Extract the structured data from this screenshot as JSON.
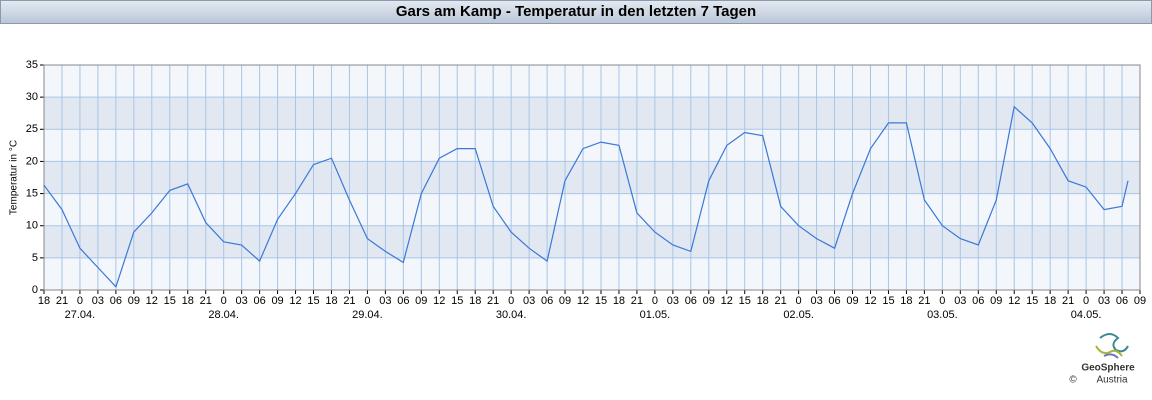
{
  "chart_data": {
    "type": "line",
    "title": "Gars am Kamp - Temperatur in den letzten 7 Tagen",
    "y_label": "Temperatur in °C",
    "x": [
      "26.04. 18:00",
      "26.04. 21:00",
      "27.04. 00:00",
      "27.04. 03:00",
      "27.04. 06:00",
      "27.04. 09:00",
      "27.04. 12:00",
      "27.04. 15:00",
      "27.04. 18:00",
      "27.04. 21:00",
      "28.04. 00:00",
      "28.04. 03:00",
      "28.04. 06:00",
      "28.04. 09:00",
      "28.04. 12:00",
      "28.04. 15:00",
      "28.04. 18:00",
      "28.04. 21:00",
      "29.04. 00:00",
      "29.04. 03:00",
      "29.04. 06:00",
      "29.04. 09:00",
      "29.04. 12:00",
      "29.04. 15:00",
      "29.04. 18:00",
      "29.04. 21:00",
      "30.04. 00:00",
      "30.04. 03:00",
      "30.04. 06:00",
      "30.04. 09:00",
      "30.04. 12:00",
      "30.04. 15:00",
      "30.04. 18:00",
      "30.04. 21:00",
      "01.05. 00:00",
      "01.05. 03:00",
      "01.05. 06:00",
      "01.05. 09:00",
      "01.05. 12:00",
      "01.05. 15:00",
      "01.05. 18:00",
      "01.05. 21:00",
      "02.05. 00:00",
      "02.05. 03:00",
      "02.05. 06:00",
      "02.05. 09:00",
      "02.05. 12:00",
      "02.05. 15:00",
      "02.05. 18:00",
      "02.05. 21:00",
      "03.05. 00:00",
      "03.05. 03:00",
      "03.05. 06:00",
      "03.05. 09:00",
      "03.05. 12:00",
      "03.05. 15:00",
      "03.05. 18:00",
      "03.05. 21:00",
      "04.05. 00:00",
      "04.05. 03:00",
      "04.05. 06:00",
      "04.05. 07:00"
    ],
    "series": [
      {
        "name": "Temperatur",
        "color": "#3a78d8",
        "values": [
          16.3,
          12.5,
          6.5,
          3.5,
          0.5,
          9,
          12,
          15.5,
          16.5,
          10.5,
          7.5,
          7,
          4.5,
          11,
          15,
          19.5,
          20.5,
          14,
          8,
          6,
          4.3,
          15,
          20.5,
          22,
          22,
          13,
          9,
          6.5,
          4.5,
          17,
          22,
          23,
          22.5,
          12,
          9,
          7,
          6,
          17,
          22.5,
          24.5,
          24,
          13,
          10,
          8,
          6.5,
          15,
          22,
          26,
          26,
          14,
          10,
          8,
          7,
          14,
          28.5,
          26,
          22,
          17,
          16,
          12.5,
          13,
          17
        ]
      }
    ],
    "xlim": [
      "26.04. 18:00",
      "04.05. 09:00"
    ],
    "xticks": [
      {
        "value": "26.04. 18:00",
        "label": "18"
      },
      {
        "value": "26.04. 21:00",
        "label": "21"
      },
      {
        "value": "27.04. 00:00",
        "label": "0"
      },
      {
        "value": "27.04. 03:00",
        "label": "03"
      },
      {
        "value": "27.04. 06:00",
        "label": "06"
      },
      {
        "value": "27.04. 09:00",
        "label": "09"
      },
      {
        "value": "27.04. 12:00",
        "label": "12"
      },
      {
        "value": "27.04. 15:00",
        "label": "15"
      },
      {
        "value": "27.04. 18:00",
        "label": "18"
      },
      {
        "value": "27.04. 21:00",
        "label": "21"
      },
      {
        "value": "28.04. 00:00",
        "label": "0"
      },
      {
        "value": "28.04. 03:00",
        "label": "03"
      },
      {
        "value": "28.04. 06:00",
        "label": "06"
      },
      {
        "value": "28.04. 09:00",
        "label": "09"
      },
      {
        "value": "28.04. 12:00",
        "label": "12"
      },
      {
        "value": "28.04. 15:00",
        "label": "15"
      },
      {
        "value": "28.04. 18:00",
        "label": "18"
      },
      {
        "value": "28.04. 21:00",
        "label": "21"
      },
      {
        "value": "29.04. 00:00",
        "label": "0"
      },
      {
        "value": "29.04. 03:00",
        "label": "03"
      },
      {
        "value": "29.04. 06:00",
        "label": "06"
      },
      {
        "value": "29.04. 09:00",
        "label": "09"
      },
      {
        "value": "29.04. 12:00",
        "label": "12"
      },
      {
        "value": "29.04. 15:00",
        "label": "15"
      },
      {
        "value": "29.04. 18:00",
        "label": "18"
      },
      {
        "value": "29.04. 21:00",
        "label": "21"
      },
      {
        "value": "30.04. 00:00",
        "label": "0"
      },
      {
        "value": "30.04. 03:00",
        "label": "03"
      },
      {
        "value": "30.04. 06:00",
        "label": "06"
      },
      {
        "value": "30.04. 09:00",
        "label": "09"
      },
      {
        "value": "30.04. 12:00",
        "label": "12"
      },
      {
        "value": "30.04. 15:00",
        "label": "15"
      },
      {
        "value": "30.04. 18:00",
        "label": "18"
      },
      {
        "value": "30.04. 21:00",
        "label": "21"
      },
      {
        "value": "01.05. 00:00",
        "label": "0"
      },
      {
        "value": "01.05. 03:00",
        "label": "03"
      },
      {
        "value": "01.05. 06:00",
        "label": "06"
      },
      {
        "value": "01.05. 09:00",
        "label": "09"
      },
      {
        "value": "01.05. 12:00",
        "label": "12"
      },
      {
        "value": "01.05. 15:00",
        "label": "15"
      },
      {
        "value": "01.05. 18:00",
        "label": "18"
      },
      {
        "value": "01.05. 21:00",
        "label": "21"
      },
      {
        "value": "02.05. 00:00",
        "label": "0"
      },
      {
        "value": "02.05. 03:00",
        "label": "03"
      },
      {
        "value": "02.05. 06:00",
        "label": "06"
      },
      {
        "value": "02.05. 09:00",
        "label": "09"
      },
      {
        "value": "02.05. 12:00",
        "label": "12"
      },
      {
        "value": "02.05. 15:00",
        "label": "15"
      },
      {
        "value": "02.05. 18:00",
        "label": "18"
      },
      {
        "value": "02.05. 21:00",
        "label": "21"
      },
      {
        "value": "03.05. 00:00",
        "label": "0"
      },
      {
        "value": "03.05. 03:00",
        "label": "03"
      },
      {
        "value": "03.05. 06:00",
        "label": "06"
      },
      {
        "value": "03.05. 09:00",
        "label": "09"
      },
      {
        "value": "03.05. 12:00",
        "label": "12"
      },
      {
        "value": "03.05. 15:00",
        "label": "15"
      },
      {
        "value": "03.05. 18:00",
        "label": "18"
      },
      {
        "value": "03.05. 21:00",
        "label": "21"
      },
      {
        "value": "04.05. 00:00",
        "label": "0"
      },
      {
        "value": "04.05. 03:00",
        "label": "03"
      },
      {
        "value": "04.05. 06:00",
        "label": "06"
      },
      {
        "value": "04.05. 09:00",
        "label": "09"
      }
    ],
    "xdate_labels": [
      {
        "value": "27.04. 00:00",
        "label": "27.04."
      },
      {
        "value": "28.04. 00:00",
        "label": "28.04."
      },
      {
        "value": "29.04. 00:00",
        "label": "29.04."
      },
      {
        "value": "30.04. 00:00",
        "label": "30.04."
      },
      {
        "value": "01.05. 00:00",
        "label": "01.05."
      },
      {
        "value": "02.05. 00:00",
        "label": "02.05."
      },
      {
        "value": "03.05. 00:00",
        "label": "03.05."
      },
      {
        "value": "04.05. 00:00",
        "label": "04.05."
      }
    ],
    "ylim": [
      0,
      35
    ],
    "yticks": [
      0,
      5,
      10,
      15,
      20,
      25,
      30,
      35
    ],
    "grid": true
  },
  "logo": {
    "name": "GeoSphere",
    "sub": "Austria",
    "copyright": "©"
  }
}
